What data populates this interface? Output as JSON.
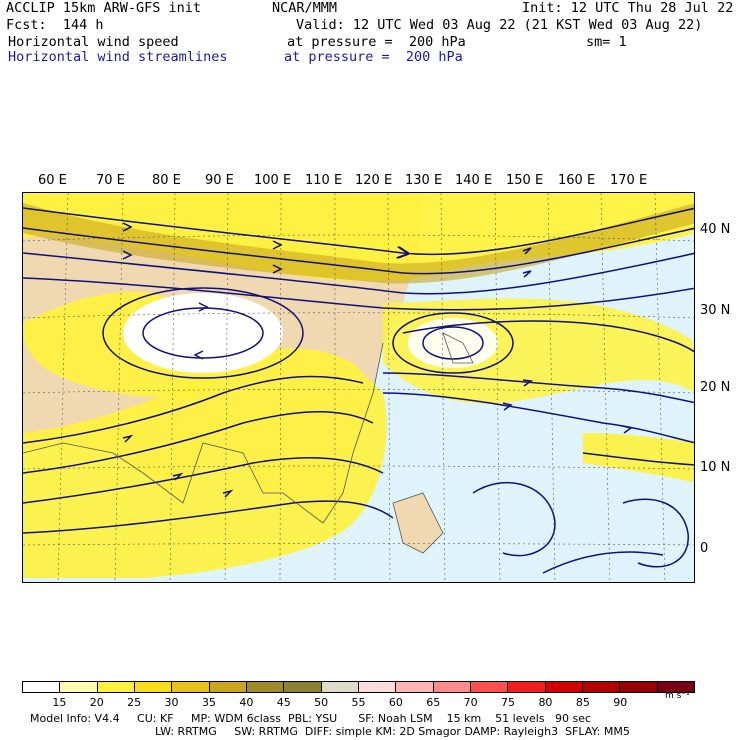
{
  "header": {
    "left_line1": "ACCLIP 15km ARW-GFS init",
    "left_line2": "Fcst:  144 h",
    "left_line3": "Horizontal wind speed",
    "left_line4": "Horizontal wind streamlines",
    "center_line1": "NCAR/MMM",
    "init": "Init: 12 UTC Thu 28 Jul 22",
    "valid": "Valid: 12 UTC Wed 03 Aug 22 (21 KST Wed 03 Aug 22)",
    "pressure1": "at pressure =  200 hPa",
    "pressure2": "at pressure =  200 hPa",
    "sm": "sm= 1"
  },
  "map": {
    "lon_labels": [
      "60 E",
      "70 E",
      "80 E",
      "90 E",
      "100 E",
      "110 E",
      "120 E",
      "130 E",
      "140 E",
      "150 E",
      "160 E",
      "170 E"
    ],
    "lat_labels": [
      "40 N",
      "30 N",
      "20 N",
      "10 N",
      "0"
    ],
    "colors": {
      "land": "#f0d9b0",
      "ocean": "#dff3fb",
      "streamline": "#10107a",
      "coast": "#555555"
    }
  },
  "colorbar": {
    "ticks": [
      "15",
      "20",
      "25",
      "30",
      "35",
      "40",
      "45",
      "50",
      "55",
      "60",
      "65",
      "70",
      "75",
      "80",
      "85",
      "90"
    ],
    "unit": "m s⁻¹",
    "colors": [
      "#ffffff",
      "#fffbb0",
      "#fff23c",
      "#f7df14",
      "#e6c214",
      "#c9a61e",
      "#a08a28",
      "#8c8232",
      "#dcdcc8",
      "#ffdcdc",
      "#ffb4b4",
      "#ff8c8c",
      "#ff5050",
      "#f01e1e",
      "#d20000",
      "#b40000",
      "#960000",
      "#780014"
    ]
  },
  "footer": {
    "line1": "Model Info: V4.4     CU: KF     MP: WDM 6class  PBL: YSU      SF: Noah LSM    15 km    51 levels   90 sec",
    "line2": "LW: RRTMG     SW: RRTMG  DIFF: simple KM: 2D Smagor DAMP: Rayleigh3  SFLAY: MM5"
  }
}
